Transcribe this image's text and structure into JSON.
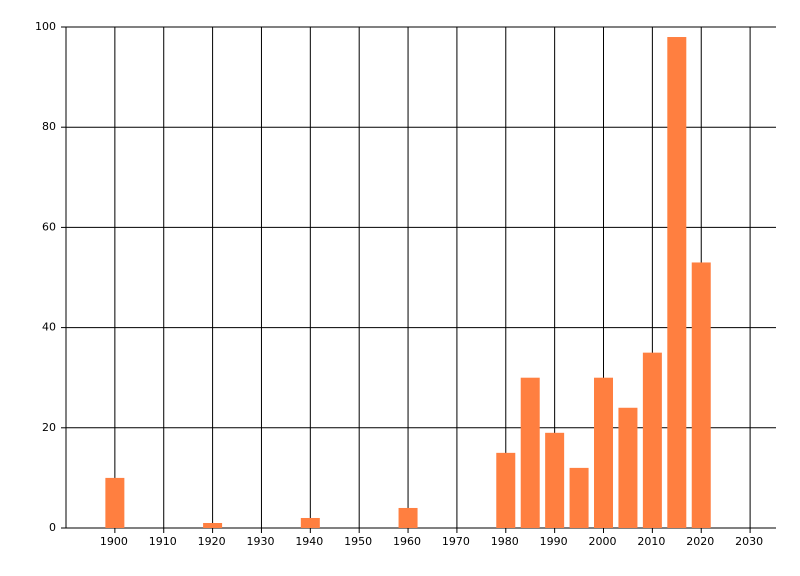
{
  "chart_data": {
    "type": "bar",
    "x": [
      1900,
      1920,
      1940,
      1960,
      1980,
      1985,
      1990,
      1995,
      2000,
      2005,
      2010,
      2015,
      2020
    ],
    "values": [
      10,
      1,
      2,
      4,
      15,
      30,
      19,
      12,
      30,
      24,
      35,
      98,
      53
    ],
    "color": "#ff7f40",
    "xlim": [
      1890,
      2035.3
    ],
    "xticks": [
      1900,
      1910,
      1920,
      1930,
      1940,
      1950,
      1960,
      1970,
      1980,
      1990,
      2000,
      2010,
      2020,
      2030
    ],
    "ylim": [
      0,
      100
    ],
    "yticks": [
      0,
      20,
      40,
      60,
      80,
      100
    ],
    "grid": true
  }
}
